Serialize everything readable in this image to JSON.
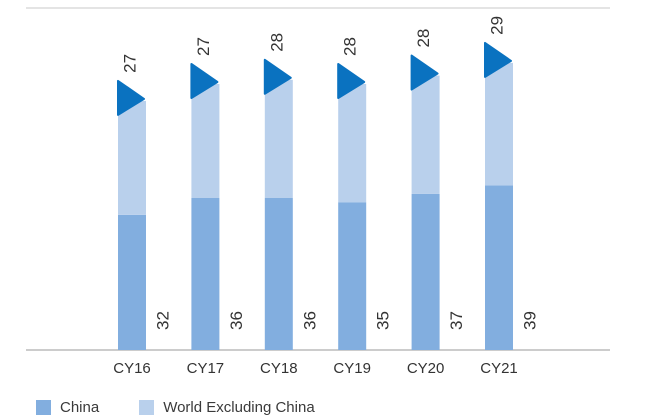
{
  "chart_data": {
    "type": "bar",
    "categories": [
      "CY16",
      "CY17",
      "CY18",
      "CY19",
      "CY20",
      "CY21"
    ],
    "series": [
      {
        "name": "China",
        "values": [
          32,
          36,
          36,
          35,
          37,
          39
        ],
        "color": "#82aedf"
      },
      {
        "name": "World Excluding China",
        "values": [
          27,
          27,
          28,
          28,
          28,
          29
        ],
        "color": "#b9d0ec"
      }
    ],
    "marker_color": "#0a72c0",
    "ylim": [
      0,
      81
    ],
    "grid": false,
    "legend_position": "bottom-left",
    "title": "",
    "xlabel": "",
    "ylabel": ""
  }
}
